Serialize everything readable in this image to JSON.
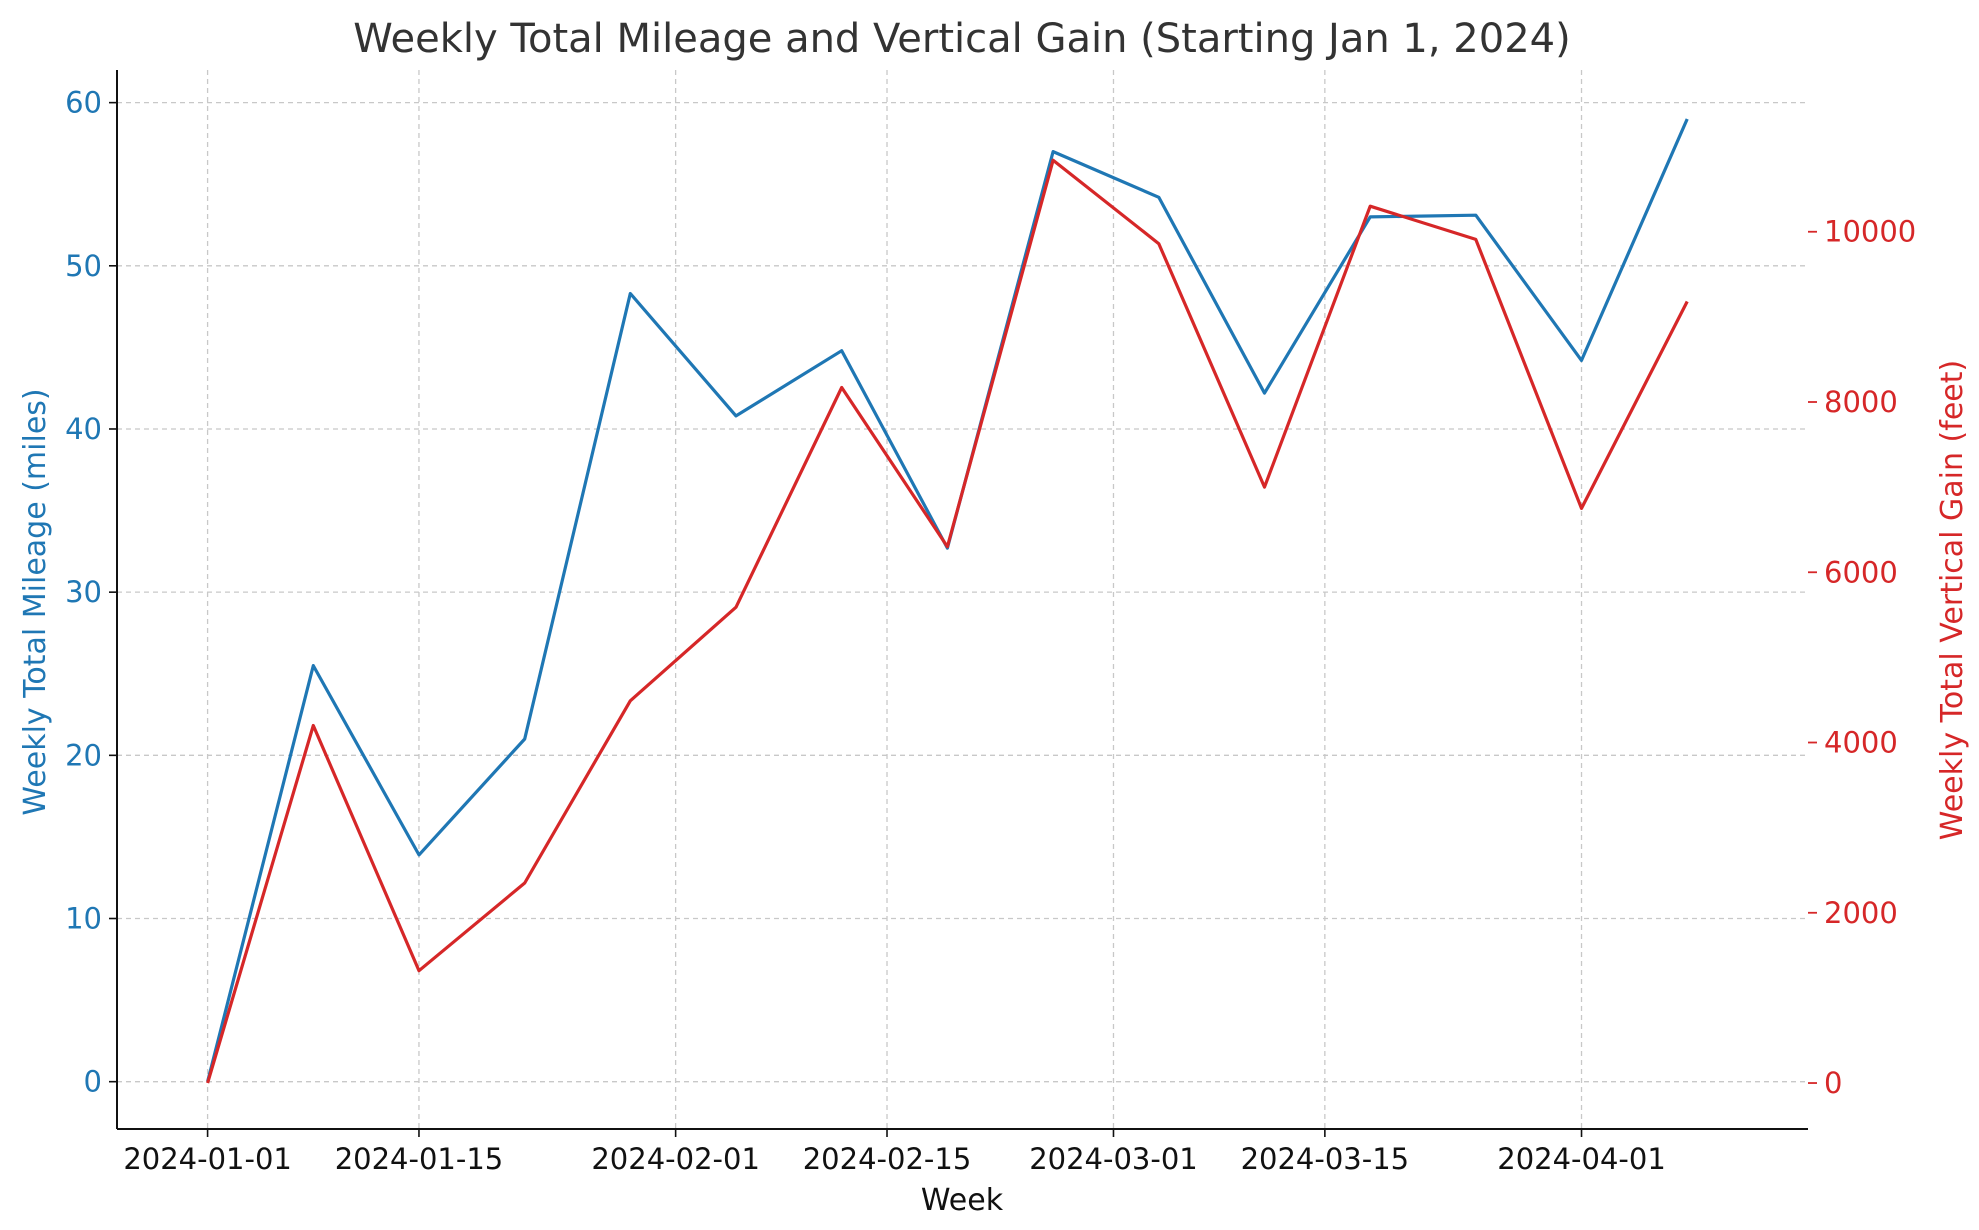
{
  "chart_data": {
    "type": "line",
    "title": "Weekly Total Mileage and Vertical Gain (Starting Jan 1, 2024)",
    "xlabel": "Week",
    "y_left_label": "Weekly Total Mileage (miles)",
    "y_right_label": "Weekly Total Vertical Gain (feet)",
    "x": [
      "2024-01-01",
      "2024-01-08",
      "2024-01-15",
      "2024-01-22",
      "2024-01-29",
      "2024-02-05",
      "2024-02-12",
      "2024-02-19",
      "2024-02-26",
      "2024-03-04",
      "2024-03-11",
      "2024-03-18",
      "2024-03-25",
      "2024-04-01",
      "2024-04-08"
    ],
    "x_ticks": [
      "2024-01-01",
      "2024-01-15",
      "2024-02-01",
      "2024-02-15",
      "2024-03-01",
      "2024-03-15",
      "2024-04-01"
    ],
    "x_range": [
      "2023-12-26",
      "2024-04-16"
    ],
    "y_left_ticks": [
      0,
      10,
      20,
      30,
      40,
      50,
      60
    ],
    "y_left_range": [
      -2.9,
      62
    ],
    "y_right_ticks": [
      0,
      2000,
      4000,
      6000,
      8000,
      10000
    ],
    "y_right_range": [
      -540,
      11900
    ],
    "grid": true,
    "series": [
      {
        "axis": "left",
        "color": "#1f77b4",
        "values": [
          0,
          25.5,
          13.9,
          21.0,
          48.3,
          40.8,
          44.8,
          32.7,
          57.0,
          54.2,
          42.2,
          53.0,
          53.1,
          44.2,
          59.0
        ]
      },
      {
        "axis": "right",
        "color": "#d62728",
        "values": [
          0,
          4200,
          1320,
          2350,
          4490,
          5590,
          8170,
          6300,
          10840,
          9860,
          7000,
          10300,
          9910,
          6750,
          9180
        ]
      }
    ]
  }
}
